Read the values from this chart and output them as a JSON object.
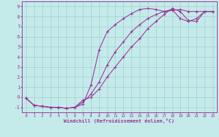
{
  "xlabel": "Windchill (Refroidissement éolien,°C)",
  "xlim": [
    -0.5,
    23.5
  ],
  "ylim": [
    -1.5,
    9.5
  ],
  "xticks": [
    0,
    1,
    2,
    3,
    4,
    5,
    6,
    7,
    8,
    9,
    10,
    11,
    12,
    13,
    14,
    15,
    16,
    17,
    18,
    19,
    20,
    21,
    22,
    23
  ],
  "yticks": [
    -1,
    0,
    1,
    2,
    3,
    4,
    5,
    6,
    7,
    8,
    9
  ],
  "bg_color": "#c5eaea",
  "grid_color": "#9ecece",
  "line_color": "#993399",
  "line1_x": [
    0,
    1,
    2,
    3,
    4,
    5,
    6,
    7,
    8,
    9,
    10,
    11,
    12,
    13,
    14,
    15,
    16,
    17,
    18,
    19,
    20,
    21,
    22,
    23
  ],
  "line1_y": [
    -0.1,
    -0.8,
    -0.9,
    -1.0,
    -1.0,
    -1.1,
    -1.0,
    -0.7,
    1.2,
    4.7,
    6.5,
    7.2,
    7.8,
    8.3,
    8.7,
    8.8,
    8.7,
    8.5,
    8.6,
    8.7,
    8.5,
    8.5,
    8.5,
    8.5
  ],
  "line2_x": [
    0,
    1,
    2,
    3,
    4,
    5,
    6,
    7,
    8,
    9,
    10,
    11,
    12,
    13,
    14,
    15,
    16,
    17,
    18,
    19,
    20,
    21,
    22,
    23
  ],
  "line2_y": [
    -0.1,
    -0.8,
    -0.9,
    -1.0,
    -1.0,
    -1.1,
    -1.0,
    -0.5,
    0.3,
    1.5,
    3.2,
    4.5,
    5.5,
    6.5,
    7.2,
    7.8,
    8.2,
    8.5,
    8.7,
    7.8,
    7.5,
    7.8,
    8.5,
    8.5
  ],
  "line3_x": [
    0,
    1,
    2,
    3,
    4,
    5,
    6,
    7,
    8,
    9,
    10,
    11,
    12,
    13,
    14,
    15,
    16,
    17,
    18,
    19,
    20,
    21,
    22,
    23
  ],
  "line3_y": [
    -0.1,
    -0.8,
    -0.9,
    -1.0,
    -1.0,
    -1.1,
    -1.0,
    -0.3,
    0.0,
    0.8,
    2.0,
    3.0,
    4.0,
    5.0,
    5.8,
    6.8,
    7.5,
    8.2,
    8.8,
    8.5,
    7.6,
    7.5,
    8.5,
    8.5
  ]
}
